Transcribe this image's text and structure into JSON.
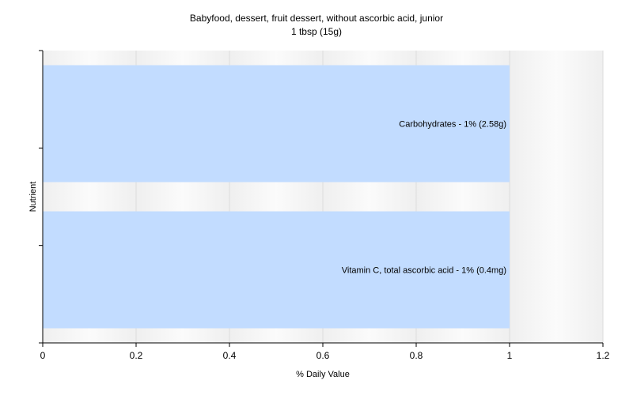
{
  "chart_data": {
    "type": "bar",
    "orientation": "horizontal",
    "title": "Babyfood, dessert, fruit dessert, without ascorbic acid, junior",
    "subtitle": "1 tbsp (15g)",
    "xlabel": "% Daily Value",
    "ylabel": "Nutrient",
    "xlim": [
      0,
      1.2
    ],
    "xticks": [
      "0",
      "0.2",
      "0.4",
      "0.6",
      "0.8",
      "1",
      "1.2"
    ],
    "grid": true,
    "bar_color": "#c2dcff",
    "categories": [
      "Carbohydrates",
      "Vitamin C, total ascorbic acid"
    ],
    "values": [
      1,
      1
    ],
    "data_labels": [
      "Carbohydrates - 1% (2.58g)",
      "Vitamin C, total ascorbic acid - 1% (0.4mg)"
    ]
  }
}
